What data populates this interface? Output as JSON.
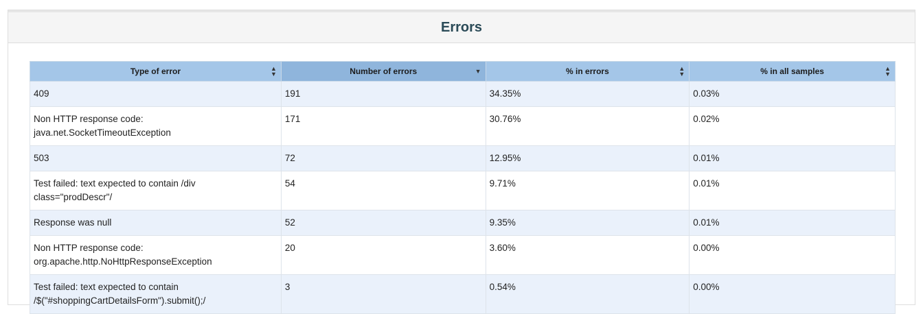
{
  "panel": {
    "title": "Errors"
  },
  "table": {
    "columns": [
      {
        "label": "Type of error",
        "sort": "both",
        "sorted": false
      },
      {
        "label": "Number of errors",
        "sort": "desc",
        "sorted": true
      },
      {
        "label": "% in errors",
        "sort": "both",
        "sorted": false
      },
      {
        "label": "% in all samples",
        "sort": "both",
        "sorted": false
      }
    ],
    "rows": [
      {
        "type_line1": "409",
        "type_line2": "",
        "count": "191",
        "pct_errors": "34.35%",
        "pct_samples": "0.03%"
      },
      {
        "type_line1": "Non HTTP response code:",
        "type_line2": "java.net.SocketTimeoutException",
        "count": "171",
        "pct_errors": "30.76%",
        "pct_samples": "0.02%"
      },
      {
        "type_line1": "503",
        "type_line2": "",
        "count": "72",
        "pct_errors": "12.95%",
        "pct_samples": "0.01%"
      },
      {
        "type_line1": "Test failed: text expected to contain /div",
        "type_line2": "class=\"prodDescr\"/",
        "count": "54",
        "pct_errors": "9.71%",
        "pct_samples": "0.01%"
      },
      {
        "type_line1": "Response was null",
        "type_line2": "",
        "count": "52",
        "pct_errors": "9.35%",
        "pct_samples": "0.01%"
      },
      {
        "type_line1": "Non HTTP response code:",
        "type_line2": "org.apache.http.NoHttpResponseException",
        "count": "20",
        "pct_errors": "3.60%",
        "pct_samples": "0.00%"
      },
      {
        "type_line1": "Test failed: text expected to contain",
        "type_line2": "/$(\"#shoppingCartDetailsForm\").submit();/",
        "count": "3",
        "pct_errors": "0.54%",
        "pct_samples": "0.00%"
      }
    ]
  },
  "colors": {
    "header_bg": "#a4c6e8",
    "header_sorted_bg": "#8fb5dc",
    "row_odd_bg": "#eaf1fb",
    "title_color": "#2a4a57"
  },
  "icons": {
    "sort_both": "sort-both-icon",
    "sort_desc": "sort-desc-icon"
  }
}
